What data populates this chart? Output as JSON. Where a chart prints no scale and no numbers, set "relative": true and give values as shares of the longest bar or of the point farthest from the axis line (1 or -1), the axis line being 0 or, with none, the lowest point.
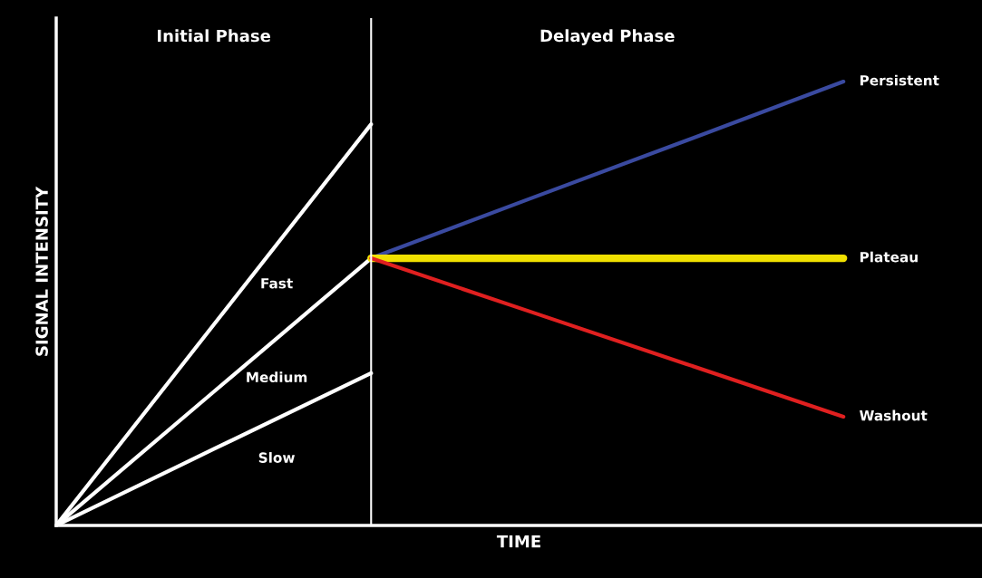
{
  "chart_data": {
    "type": "line",
    "relative": true,
    "xlabel": "TIME",
    "ylabel": "SIGNAL INTENSITY",
    "annotations": [
      "Initial Phase",
      "Delayed Phase"
    ],
    "categories": [
      null,
      null,
      null,
      null,
      null,
      null
    ],
    "legend": false,
    "marker": "none",
    "line_style": "solid",
    "series": [
      {
        "name": "Fast",
        "color": "#ffffff",
        "values": [
          0,
          0.452,
          0.904,
          null,
          null,
          null
        ]
      },
      {
        "name": "Medium",
        "color": "#ffffff",
        "values": [
          0,
          0.301,
          0.602,
          null,
          null,
          null
        ]
      },
      {
        "name": "Slow",
        "color": "#ffffff",
        "values": [
          0,
          0.172,
          0.343,
          null,
          null,
          null
        ]
      },
      {
        "name": "Persistent",
        "color": "#3a4aa0",
        "values": [
          null,
          null,
          0.602,
          0.735,
          0.867,
          1
        ]
      },
      {
        "name": "Plateau",
        "color": "#f0e000",
        "values": [
          null,
          null,
          0.602,
          0.602,
          0.602,
          0.602
        ]
      },
      {
        "name": "Washout",
        "color": "#e02020",
        "values": [
          null,
          null,
          0.602,
          0.483,
          0.364,
          0.245
        ]
      }
    ]
  }
}
